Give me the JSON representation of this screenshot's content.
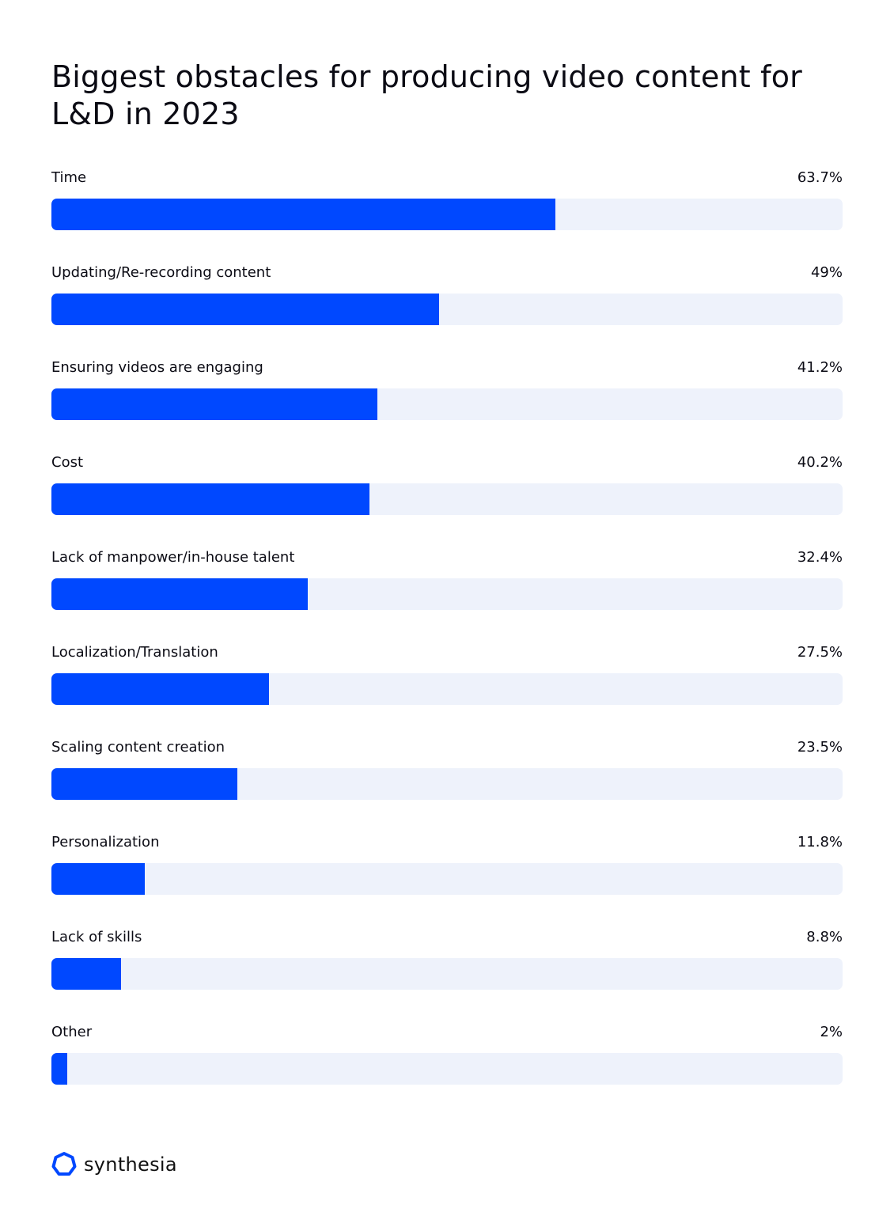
{
  "chart_data": {
    "type": "bar",
    "orientation": "horizontal",
    "title": "Biggest obstacles for producing video content for L&D in 2023",
    "categories": [
      "Time",
      "Updating/Re-recording content",
      "Ensuring videos are engaging",
      "Cost",
      "Lack of manpower/in-house talent",
      "Localization/Translation",
      "Scaling content creation",
      "Personalization",
      "Lack of skills",
      "Other"
    ],
    "values": [
      63.7,
      49,
      41.2,
      40.2,
      32.4,
      27.5,
      23.5,
      11.8,
      8.8,
      2
    ],
    "value_labels": [
      "63.7%",
      "49%",
      "41.2%",
      "40.2%",
      "32.4%",
      "27.5%",
      "23.5%",
      "11.8%",
      "8.8%",
      "2%"
    ],
    "xlim": [
      0,
      100
    ],
    "grid": false,
    "colors": {
      "bar": "#0048ff",
      "track": "#eef2fb"
    }
  },
  "brand": {
    "name": "synthesia",
    "logo_color": "#0048ff"
  }
}
